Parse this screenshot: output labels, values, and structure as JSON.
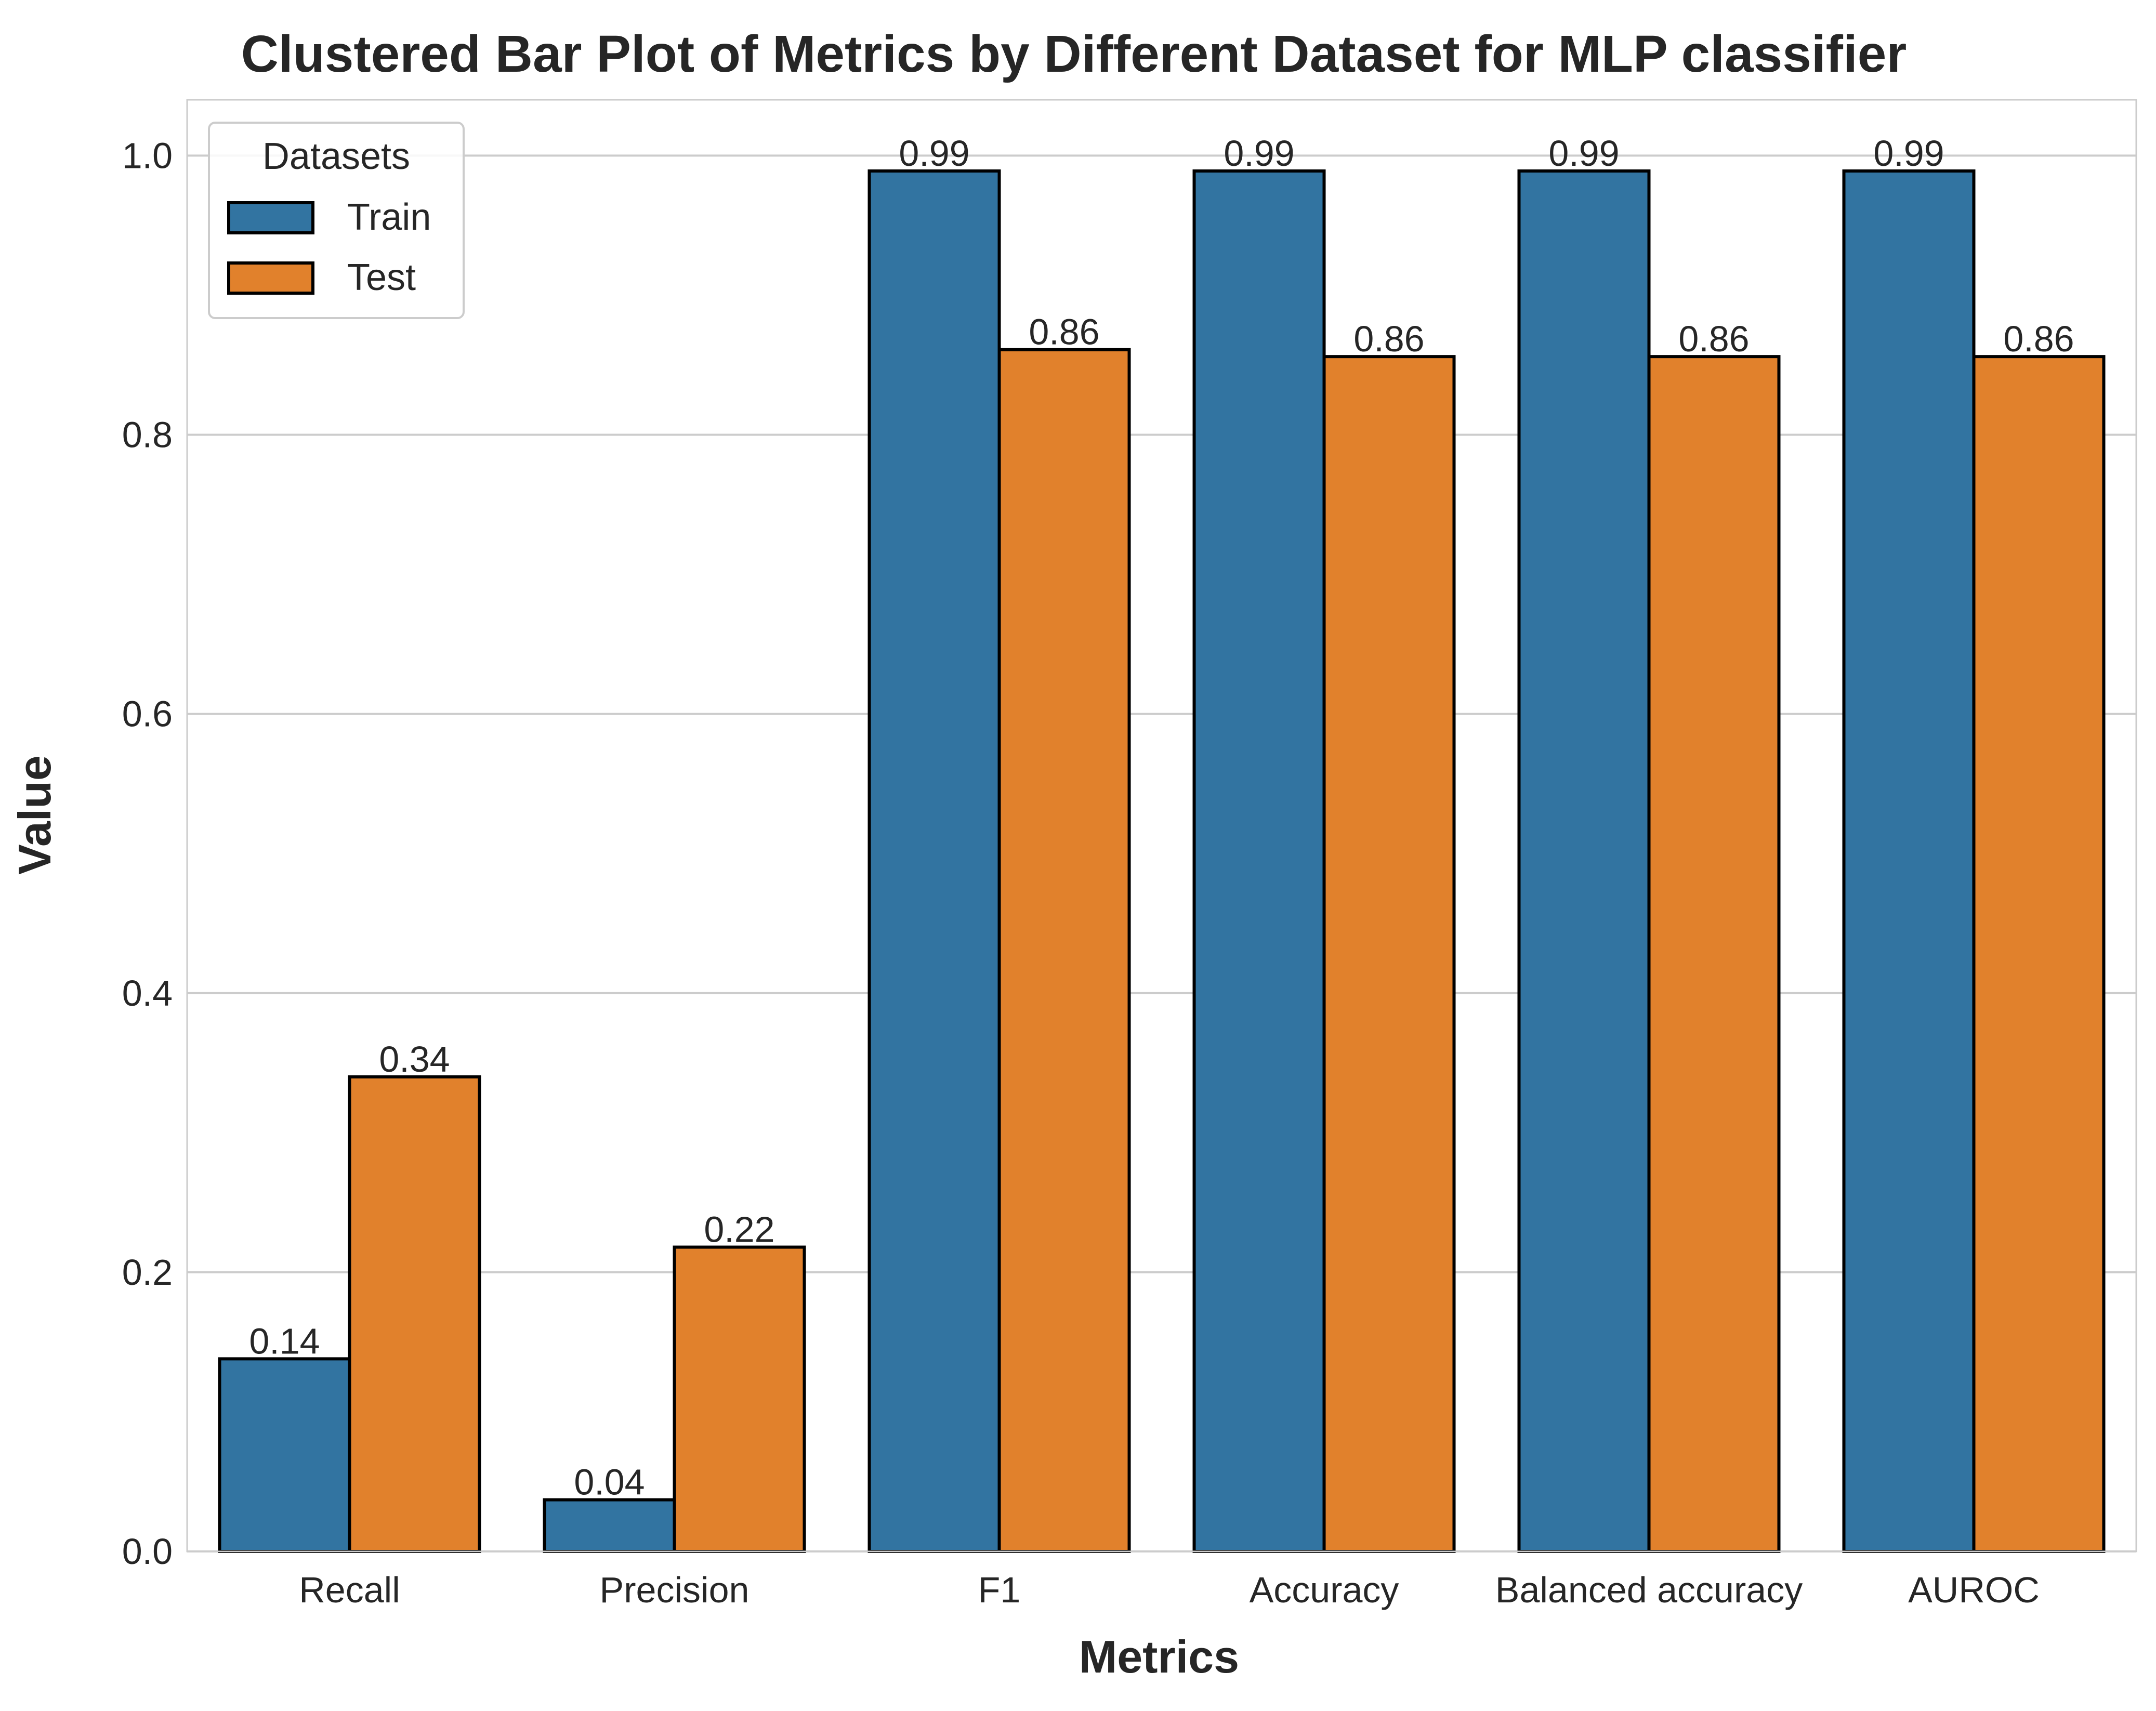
{
  "chart_data": {
    "type": "bar",
    "title": "Clustered Bar Plot of Metrics by Different Dataset for MLP classifier",
    "xlabel": "Metrics",
    "ylabel": "Value",
    "categories": [
      "Recall",
      "Precision",
      "F1",
      "Accuracy",
      "Balanced accuracy",
      "AUROC"
    ],
    "series": [
      {
        "name": "Train",
        "color": "#3274a1",
        "values": [
          0.138,
          0.037,
          0.989,
          0.989,
          0.989,
          0.989
        ],
        "labels": [
          "0.14",
          "0.04",
          "0.99",
          "0.99",
          "0.99",
          "0.99"
        ]
      },
      {
        "name": "Test",
        "color": "#e1812c",
        "values": [
          0.34,
          0.218,
          0.861,
          0.856,
          0.856,
          0.856
        ],
        "labels": [
          "0.34",
          "0.22",
          "0.86",
          "0.86",
          "0.86",
          "0.86"
        ]
      }
    ],
    "ylim": [
      0,
      1.04
    ],
    "yticks": [
      0.0,
      0.2,
      0.4,
      0.6,
      0.8,
      1.0
    ],
    "ytick_labels": [
      "0.0",
      "0.2",
      "0.4",
      "0.6",
      "0.8",
      "1.0"
    ],
    "grid": true,
    "legend": {
      "title": "Datasets",
      "position": "top-left"
    }
  }
}
